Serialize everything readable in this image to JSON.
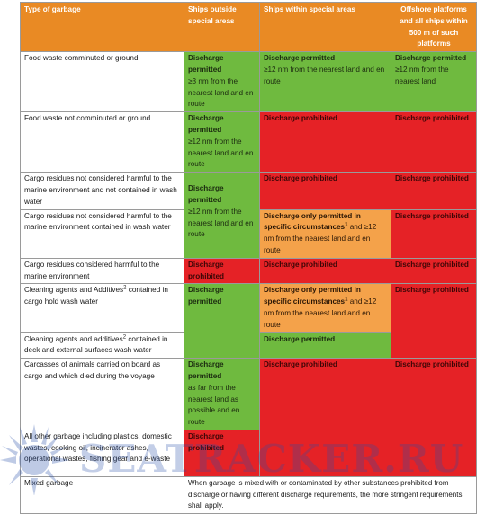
{
  "headers": {
    "type": "Type of garbage",
    "outside": "Ships outside special areas",
    "within": "Ships within special areas",
    "offshore": "Offshore platforms and all ships within 500 m of such platforms"
  },
  "rows": {
    "r1_type": "Food waste comminuted or ground",
    "r1_outside": "Discharge permitted",
    "r1_outside_detail": "≥3 nm from the nearest land and en route",
    "r1_within": "Discharge permitted",
    "r1_within_detail": "≥12 nm from the nearest land and en route",
    "r1_offshore": "Discharge permitted",
    "r1_offshore_detail": "≥12 nm from the nearest land",
    "r2_type": "Food waste not comminuted or ground",
    "r2_outside": "Discharge permitted",
    "r2_outside_detail": "≥12 nm from the nearest land and en route",
    "r2_within": "Discharge prohibited",
    "r2_offshore": "Discharge prohibited",
    "r3_type": "Cargo residues not considered harmful to the marine environment and not contained in wash water",
    "r3_within": "Discharge prohibited",
    "r3_offshore": "Discharge prohibited",
    "r34_outside": "Discharge permitted",
    "r34_outside_detail": "≥12 nm from the nearest land and en route",
    "r4_type": "Cargo residues not considered harmful to the marine environment contained in wash water",
    "r4_within_a": "Discharge only permitted in specific circumstances",
    "r4_within_b": " and ≥12 nm from the nearest land and en route",
    "r4_offshore": "Discharge prohibited",
    "r5_type": "Cargo residues considered harmful to the marine environment",
    "r5_outside": "Discharge prohibited",
    "r5_within": "Discharge prohibited",
    "r5_offshore": "Discharge prohibited",
    "r6_type_a": "Cleaning agents and Additives",
    "r6_type_b": " contained in cargo hold wash water",
    "r67_outside": "Discharge permitted",
    "r6_within_a": "Discharge only permitted in specific circumstances",
    "r6_within_b": " and ≥12 nm from the nearest land and en route",
    "r67_offshore": "Discharge prohibited",
    "r7_type_a": "Cleaning agents and additives",
    "r7_type_b": " contained in deck and external surfaces wash water",
    "r7_within": "Discharge permitted",
    "r8_type": "Carcasses of animals carried on board as cargo and which died during the voyage",
    "r8_outside": "Discharge permitted",
    "r8_outside_detail": "as far from the nearest land as possible and en route",
    "r8_within": "Discharge prohibited",
    "r8_offshore": "Discharge prohibited",
    "r9_type": "All other garbage including plastics, domestic wastes, cooking oil, incinerator ashes, operational wastes, fishing gear and e-waste",
    "r9_outside": "Discharge prohibited",
    "r10_type": "Mixed garbage",
    "r10_note": "When garbage is mixed with or contaminated by other substances prohibited from discharge or having different discharge requirements, the more stringent requirements shall apply."
  },
  "footnotes": {
    "one": "1",
    "two": "2"
  },
  "watermark": {
    "text": "SEATRACKER.RU"
  },
  "colors": {
    "header": "#e98a24",
    "permitted": "#6fba3f",
    "prohibited": "#e52226",
    "conditional": "#f4a24a",
    "watermark": "#2850aa"
  }
}
